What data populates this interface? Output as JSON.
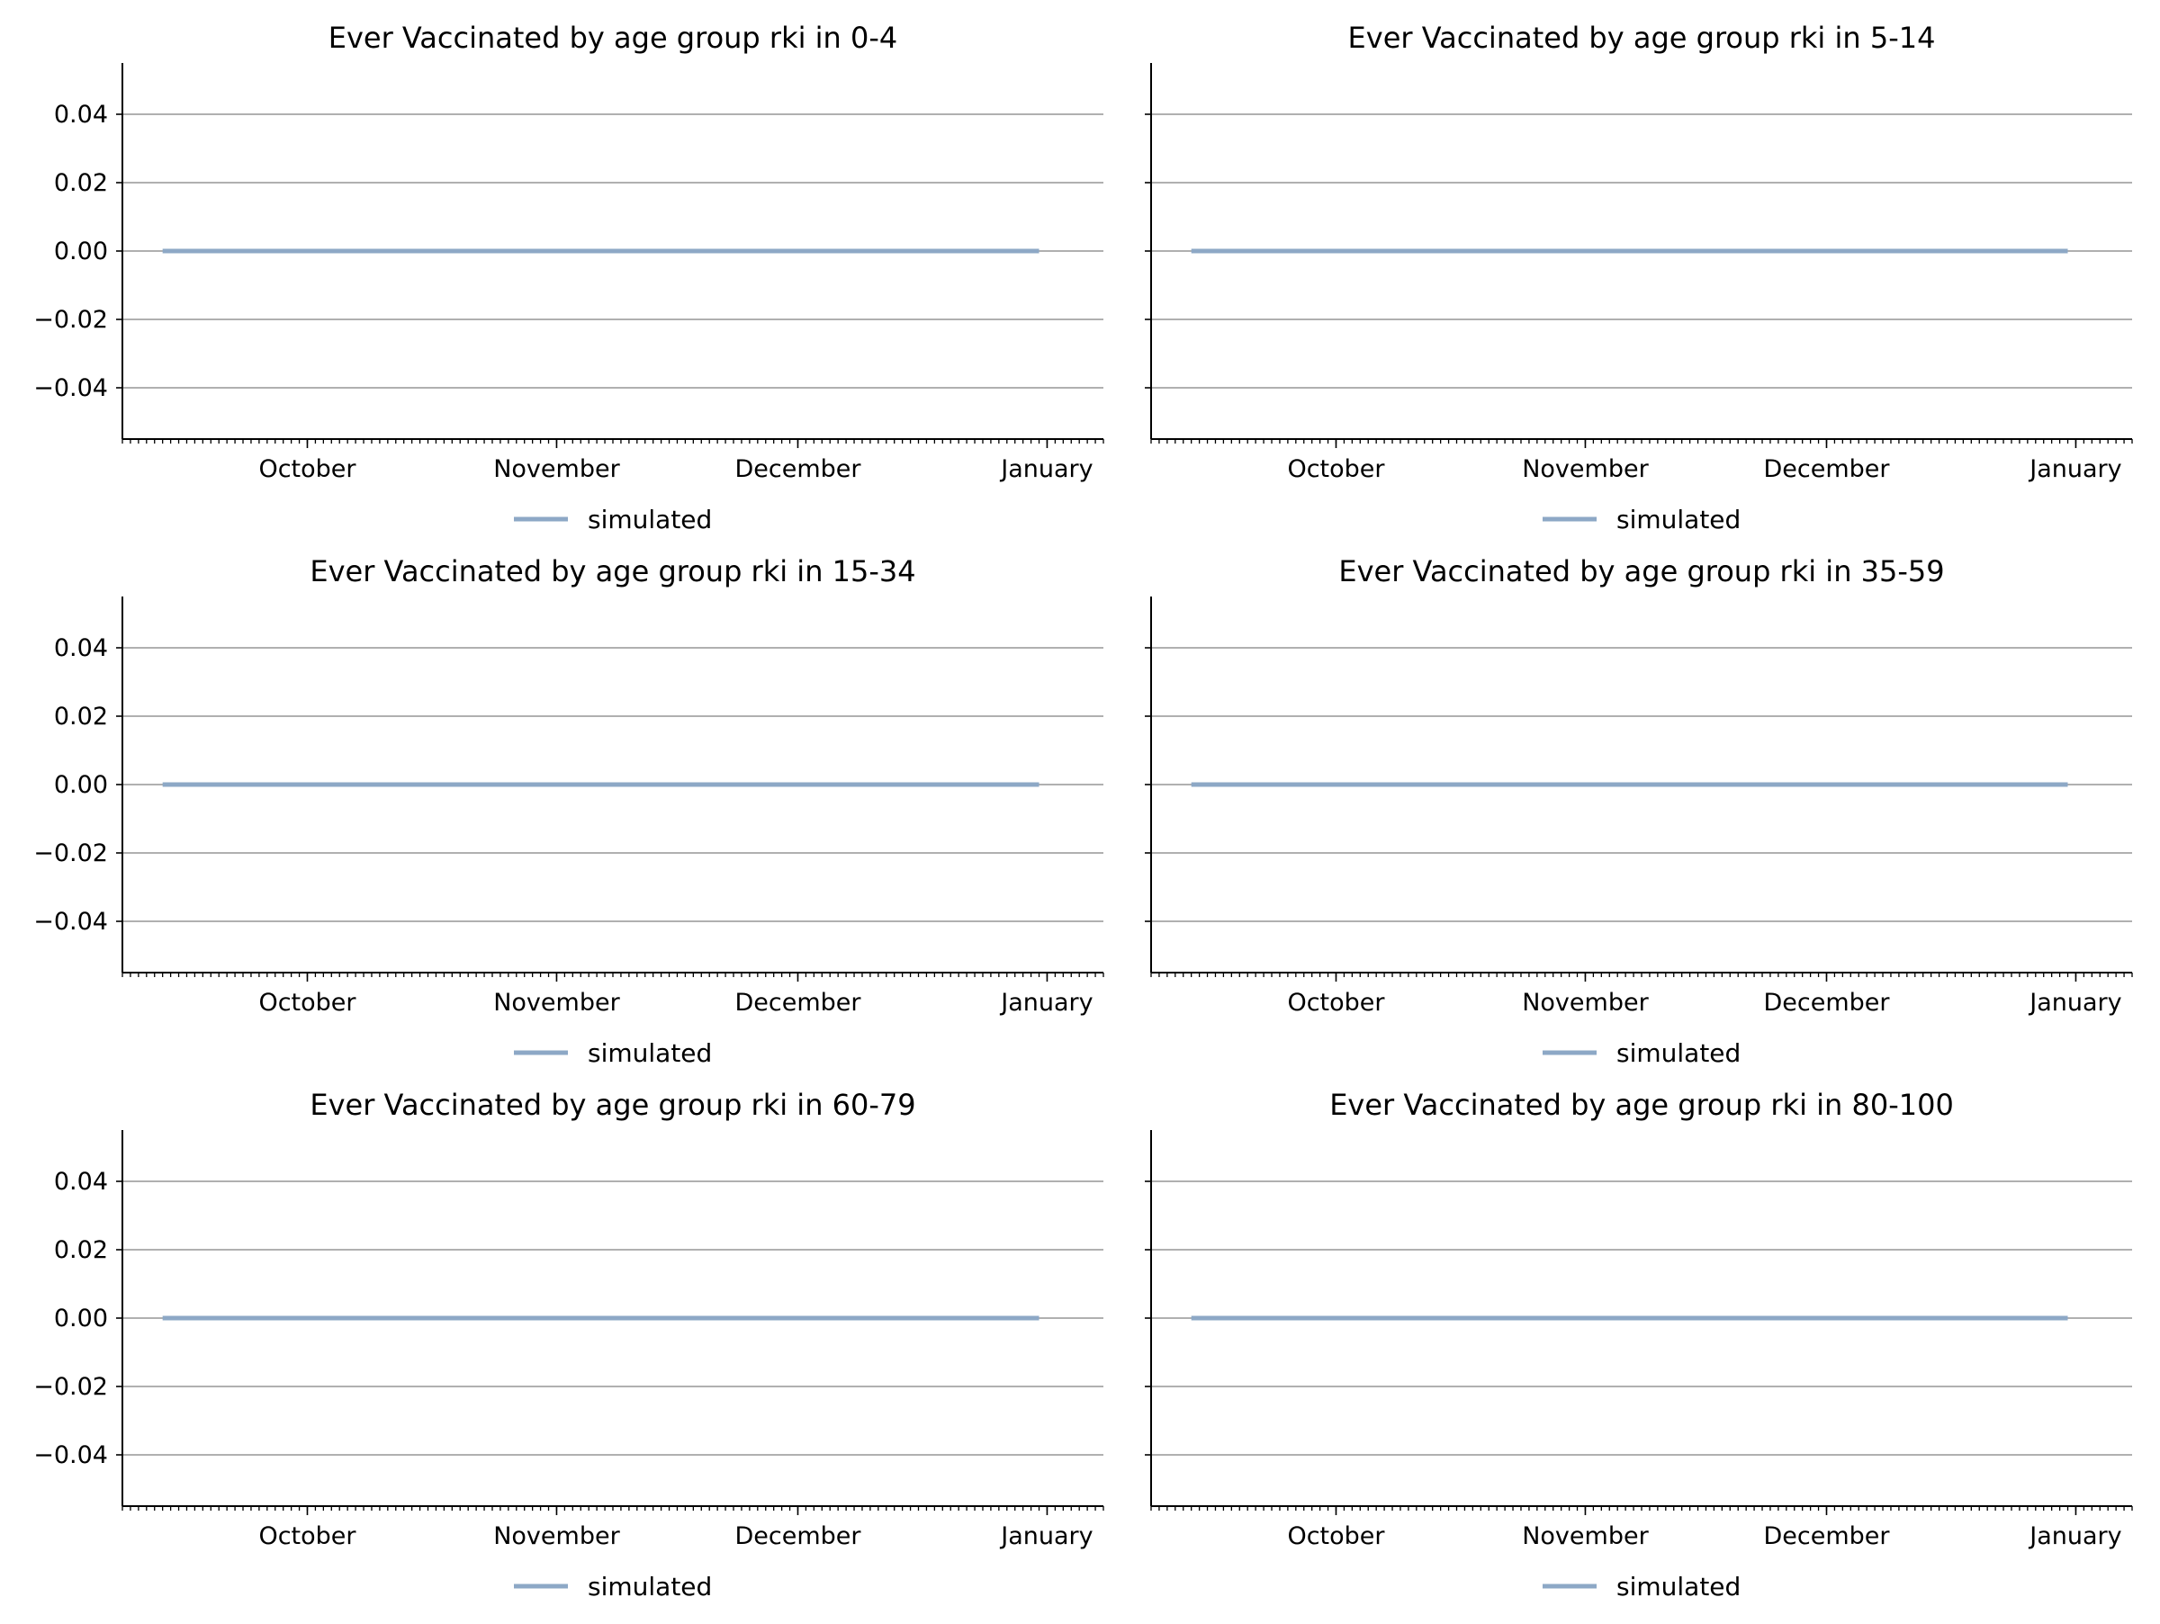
{
  "figure": {
    "background": "#ffffff"
  },
  "chart_data": [
    {
      "type": "line",
      "title": "Ever Vaccinated by age group rki in 0-4",
      "xlabel": "",
      "ylabel": "",
      "x_ticks": [
        "October",
        "November",
        "December",
        "January"
      ],
      "y_ticks": [
        "0.04",
        "0.02",
        "0.00",
        "−0.02",
        "−0.04"
      ],
      "ylim": [
        -0.055,
        0.055
      ],
      "xlim": [
        "2021-09-08",
        "2022-01-08"
      ],
      "grid": "horizontal",
      "legend_position": "below",
      "series": [
        {
          "name": "simulated",
          "color": "#8da8c6",
          "x": [
            "2021-09-13",
            "2021-12-31"
          ],
          "y": [
            0.0,
            0.0
          ]
        }
      ]
    },
    {
      "type": "line",
      "title": "Ever Vaccinated by age group rki in 5-14",
      "xlabel": "",
      "ylabel": "",
      "x_ticks": [
        "October",
        "November",
        "December",
        "January"
      ],
      "y_ticks": [],
      "ylim": [
        -0.055,
        0.055
      ],
      "xlim": [
        "2021-09-08",
        "2022-01-08"
      ],
      "grid": "horizontal",
      "legend_position": "below",
      "series": [
        {
          "name": "simulated",
          "color": "#8da8c6",
          "x": [
            "2021-09-13",
            "2021-12-31"
          ],
          "y": [
            0.0,
            0.0
          ]
        }
      ]
    },
    {
      "type": "line",
      "title": "Ever Vaccinated by age group rki in 15-34",
      "xlabel": "",
      "ylabel": "",
      "x_ticks": [
        "October",
        "November",
        "December",
        "January"
      ],
      "y_ticks": [
        "0.04",
        "0.02",
        "0.00",
        "−0.02",
        "−0.04"
      ],
      "ylim": [
        -0.055,
        0.055
      ],
      "xlim": [
        "2021-09-08",
        "2022-01-08"
      ],
      "grid": "horizontal",
      "legend_position": "below",
      "series": [
        {
          "name": "simulated",
          "color": "#8da8c6",
          "x": [
            "2021-09-13",
            "2021-12-31"
          ],
          "y": [
            0.0,
            0.0
          ]
        }
      ]
    },
    {
      "type": "line",
      "title": "Ever Vaccinated by age group rki in 35-59",
      "xlabel": "",
      "ylabel": "",
      "x_ticks": [
        "October",
        "November",
        "December",
        "January"
      ],
      "y_ticks": [],
      "ylim": [
        -0.055,
        0.055
      ],
      "xlim": [
        "2021-09-08",
        "2022-01-08"
      ],
      "grid": "horizontal",
      "legend_position": "below",
      "series": [
        {
          "name": "simulated",
          "color": "#8da8c6",
          "x": [
            "2021-09-13",
            "2021-12-31"
          ],
          "y": [
            0.0,
            0.0
          ]
        }
      ]
    },
    {
      "type": "line",
      "title": "Ever Vaccinated by age group rki in 60-79",
      "xlabel": "",
      "ylabel": "",
      "x_ticks": [
        "October",
        "November",
        "December",
        "January"
      ],
      "y_ticks": [
        "0.04",
        "0.02",
        "0.00",
        "−0.02",
        "−0.04"
      ],
      "ylim": [
        -0.055,
        0.055
      ],
      "xlim": [
        "2021-09-08",
        "2022-01-08"
      ],
      "grid": "horizontal",
      "legend_position": "below",
      "series": [
        {
          "name": "simulated",
          "color": "#8da8c6",
          "x": [
            "2021-09-13",
            "2021-12-31"
          ],
          "y": [
            0.0,
            0.0
          ]
        }
      ]
    },
    {
      "type": "line",
      "title": "Ever Vaccinated by age group rki in 80-100",
      "xlabel": "",
      "ylabel": "",
      "x_ticks": [
        "October",
        "November",
        "December",
        "January"
      ],
      "y_ticks": [],
      "ylim": [
        -0.055,
        0.055
      ],
      "xlim": [
        "2021-09-08",
        "2022-01-08"
      ],
      "grid": "horizontal",
      "legend_position": "below",
      "series": [
        {
          "name": "simulated",
          "color": "#8da8c6",
          "x": [
            "2021-09-13",
            "2021-12-31"
          ],
          "y": [
            0.0,
            0.0
          ]
        }
      ]
    }
  ]
}
